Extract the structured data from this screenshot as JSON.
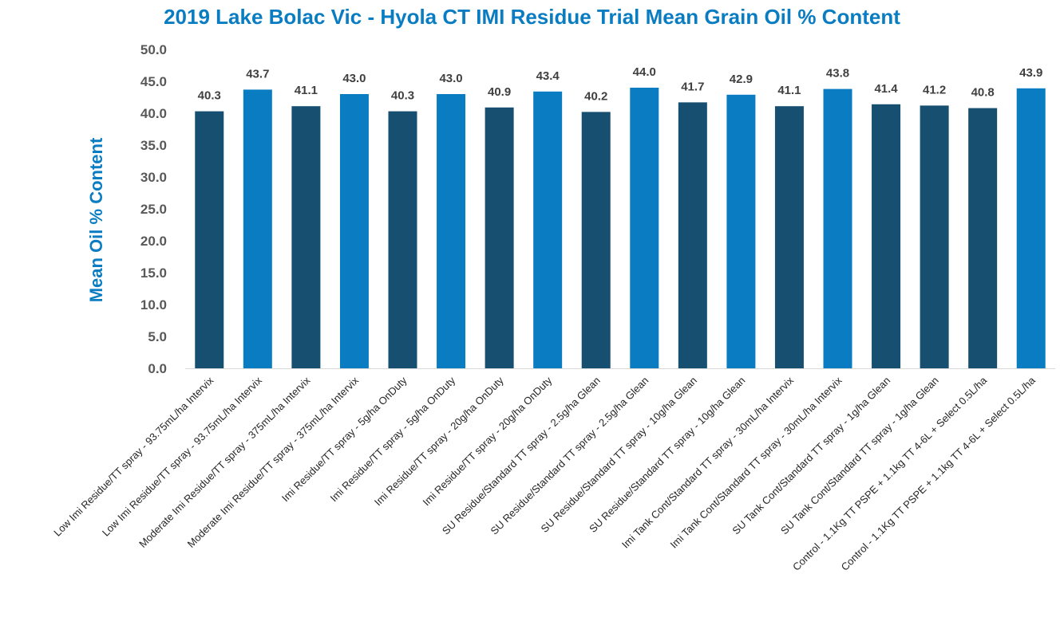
{
  "chart_data": {
    "type": "bar",
    "title": "2019 Lake Bolac Vic - Hyola CT IMI Residue Trial Mean Grain Oil % Content",
    "xlabel": "",
    "ylabel": "Mean Oil % Content",
    "ylim": [
      0,
      50
    ],
    "ytick_labels": [
      "0.0",
      "5.0",
      "10.0",
      "15.0",
      "20.0",
      "25.0",
      "30.0",
      "35.0",
      "40.0",
      "45.0",
      "50.0"
    ],
    "grid": false,
    "legend": "none",
    "categories": [
      "Low Imi Residue/TT spray - 93.75mL/ha Intervix",
      "Low Imi Residue/TT spray - 93.75mL/ha Intervix",
      "Moderate Imi Residue/TT spray - 375mL/ha Intervix",
      "Moderate Imi Residue/TT spray - 375mL/ha Intervix",
      "Imi Residue/TT spray - 5g/ha OnDuty",
      "Imi Residue/TT spray - 5g/ha OnDuty",
      "Imi Residue/TT spray - 20g/ha OnDuty",
      "Imi Residue/TT spray - 20g/ha OnDuty",
      "SU Residue/Standard TT spray - 2.5g/ha Glean",
      "SU Residue/Standard TT spray - 2.5g/ha Glean",
      "SU Residue/Standard TT spray - 10g/ha Glean",
      "SU Residue/Standard TT spray - 10g/ha Glean",
      "Imi Tank Cont/Standard TT spray - 30mL/ha Intervix",
      "Imi Tank Cont/Standard TT spray - 30mL/ha Intervix",
      "SU Tank Cont/Standard TT spray - 1g/ha Glean",
      "SU Tank Cont/Standard TT spray - 1g/ha Glean",
      "Control - 1.1Kg TT PSPE + 1.1kg TT 4-6L + Select 0.5L/ha",
      "Control - 1.1Kg TT PSPE + 1.1kg TT 4-6L + Select 0.5L/ha"
    ],
    "values": [
      40.3,
      43.7,
      41.1,
      43.0,
      40.3,
      43.0,
      40.9,
      43.4,
      40.2,
      44.0,
      41.7,
      42.9,
      41.1,
      43.8,
      41.4,
      41.2,
      40.8,
      43.9
    ],
    "data_labels": [
      "40.3",
      "43.7",
      "41.1",
      "43.0",
      "40.3",
      "43.0",
      "40.9",
      "43.4",
      "40.2",
      "44.0",
      "41.7",
      "42.9",
      "41.1",
      "43.8",
      "41.4",
      "41.2",
      "40.8",
      "43.9"
    ],
    "bar_colors": [
      "#174f70",
      "#0a7dc2",
      "#174f70",
      "#0a7dc2",
      "#174f70",
      "#0a7dc2",
      "#174f70",
      "#0a7dc2",
      "#174f70",
      "#0a7dc2",
      "#174f70",
      "#0a7dc2",
      "#174f70",
      "#0a7dc2",
      "#174f70",
      "#174f70",
      "#174f70",
      "#0a7dc2"
    ],
    "colors": {
      "title": "#0a7dc2",
      "ylabel": "#0a7dc2",
      "axis": "#d9d9d9"
    }
  }
}
